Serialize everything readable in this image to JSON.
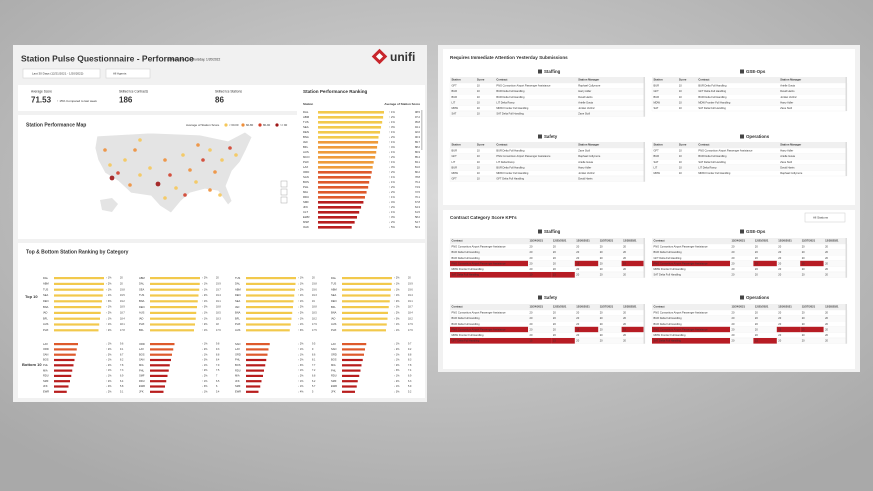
{
  "header": {
    "title": "Station Pulse Questionnaire - Performance",
    "subtitle": "as Refreshed on Thursday, 1/20/2022",
    "filters": [
      "Last 30 Days (12/21/2021 - 1/20/2022)",
      "All Agents"
    ],
    "logo": "unifi"
  },
  "kpis": [
    {
      "label": "Average Score",
      "value": "71.53",
      "note": "↑ 15% Compared to last week"
    },
    {
      "label": "Skilled Ice Contracts",
      "value": "186"
    },
    {
      "label": "Skilled Ice Stations",
      "value": "86"
    }
  ],
  "map": {
    "title": "Station Performance Map",
    "legend_title": "Average of Station Score",
    "legend": [
      {
        "label": "< 60.00",
        "color": "#f5c75a"
      },
      {
        "label": "60-80",
        "color": "#ee8f3a"
      },
      {
        "label": "80-90",
        "color": "#d2402c"
      },
      {
        "label": ">= 90",
        "color": "#9e1616"
      }
    ]
  },
  "ranking": {
    "title": "Station Performance Ranking",
    "columns": [
      "Station",
      "Average of Station Score"
    ],
    "xlim": [
      0,
      100
    ],
    "colors": [
      "#f2c94c",
      "#ee9b3a",
      "#de5a2c",
      "#b81d1d"
    ],
    "stations": [
      "DAL",
      "ABM",
      "TUS",
      "SEA",
      "DEN",
      "BNA",
      "IAD",
      "BFL",
      "AUS",
      "MCO",
      "PHX",
      "LAX",
      "ORD",
      "SAN",
      "BOS",
      "PHL",
      "MIA",
      "RDU",
      "SMF",
      "JFK",
      "CLT",
      "EWR",
      "MSP",
      "OAK"
    ],
    "changes": [
      "↑ 1%",
      "↑ 2%",
      "↓ 1%",
      "↑ 3%",
      "↑ 1%",
      "↓ 2%",
      "↑ 1%",
      "↑ 4%",
      "↓ 1%",
      "↑ 2%",
      "↑ 1%",
      "↓ 3%",
      "↑ 2%",
      "↑ 1%",
      "↓ 1%",
      "↑ 2%",
      "↓ 2%",
      "↑ 1%",
      "↓ 4%",
      "↑ 2%",
      "↓ 1%",
      "↑ 3%",
      "↓ 2%",
      "↓ 5%"
    ],
    "values": [
      98.5,
      97.2,
      95.8,
      94.1,
      92.6,
      90.3,
      89.7,
      88.2,
      86.9,
      85.4,
      83.1,
      81.6,
      80.2,
      78.8,
      76.4,
      74.9,
      72.5,
      70.1,
      67.8,
      64.3,
      61.5,
      58.2,
      54.7,
      50.3
    ]
  },
  "top_bottom": {
    "title": "Top & Bottom Station Ranking by Category",
    "top_label": "Top 10",
    "bottom_label": "Bottom 10",
    "xlim": [
      0,
      20
    ],
    "panels": [
      {
        "top": {
          "stations": [
            "DAL",
            "ABM",
            "TUS",
            "SEA",
            "DEN",
            "BNA",
            "IAD",
            "BFL",
            "AUS",
            "PHX"
          ],
          "changes": [
            "↑ 1%",
            "↑ 2%",
            "↑ 1%",
            "↓ 1%",
            "↑ 3%",
            "↑ 1%",
            "↑ 2%",
            "↓ 1%",
            "↑ 1%",
            "↑ 2%"
          ],
          "values": [
            20,
            20,
            19.8,
            19.5,
            19.2,
            18.9,
            18.7,
            18.4,
            18.1,
            17.8
          ]
        },
        "bottom": {
          "stations": [
            "LAX",
            "ORD",
            "SAN",
            "BOS",
            "PHL",
            "MIA",
            "RDU",
            "SMF",
            "JFK",
            "EWR"
          ],
          "changes": [
            "↓ 1%",
            "↑ 2%",
            "↓ 3%",
            "↑ 1%",
            "↓ 2%",
            "↑ 1%",
            "↓ 1%",
            "↑ 2%",
            "↓ 4%",
            "↓ 2%"
          ],
          "values": [
            9.6,
            9.1,
            8.7,
            8.2,
            7.8,
            7.3,
            6.9,
            6.4,
            5.8,
            5.1
          ]
        }
      },
      {
        "top": {
          "stations": [
            "ABM",
            "DAL",
            "SEA",
            "TUS",
            "BNA",
            "DEN",
            "AUS",
            "IAD",
            "PHX",
            "BFL"
          ],
          "changes": [
            "↑ 2%",
            "↑ 1%",
            "↑ 1%",
            "↓ 2%",
            "↑ 1%",
            "↑ 3%",
            "↓ 1%",
            "↑ 1%",
            "↑ 2%",
            "↑ 1%"
          ],
          "values": [
            20,
            19.9,
            19.7,
            19.4,
            19.1,
            18.8,
            18.5,
            18.3,
            18,
            17.6
          ]
        },
        "bottom": {
          "stations": [
            "ORD",
            "LAX",
            "BOS",
            "SAN",
            "MIA",
            "PHL",
            "SMF",
            "RDU",
            "EWR",
            "JFK"
          ],
          "changes": [
            "↑ 1%",
            "↓ 2%",
            "↓ 1%",
            "↑ 3%",
            "↓ 1%",
            "↑ 2%",
            "↓ 2%",
            "↑ 1%",
            "↓ 3%",
            "↓ 1%"
          ],
          "values": [
            9.8,
            9.3,
            8.8,
            8.4,
            7.9,
            7.5,
            7,
            6.5,
            6,
            5.4
          ]
        }
      },
      {
        "top": {
          "stations": [
            "TUS",
            "DAL",
            "ABM",
            "DEN",
            "SEA",
            "IAD",
            "BNA",
            "BFL",
            "PHX",
            "AUS"
          ],
          "changes": [
            "↑ 1%",
            "↓ 1%",
            "↑ 2%",
            "↑ 1%",
            "↑ 1%",
            "↓ 2%",
            "↑ 2%",
            "↑ 1%",
            "↓ 1%",
            "↑ 3%"
          ],
          "values": [
            20,
            19.8,
            19.6,
            19.3,
            19,
            18.8,
            18.5,
            18.2,
            17.9,
            17.5
          ]
        },
        "bottom": {
          "stations": [
            "SAN",
            "LAX",
            "ORD",
            "PHL",
            "BOS",
            "RDU",
            "MIA",
            "JFK",
            "SMF",
            "EWR"
          ],
          "changes": [
            "↓ 2%",
            "↑ 1%",
            "↓ 1%",
            "↑ 2%",
            "↓ 3%",
            "↑ 1%",
            "↓ 2%",
            "↑ 1%",
            "↓ 1%",
            "↓ 4%"
          ],
          "values": [
            9.5,
            9,
            8.6,
            8.1,
            7.7,
            7.2,
            6.8,
            6.2,
            5.7,
            5
          ]
        }
      },
      {
        "top": {
          "stations": [
            "DAL",
            "TUS",
            "ABM",
            "SEA",
            "DEN",
            "BFL",
            "BNA",
            "IAD",
            "AUS",
            "PHX"
          ],
          "changes": [
            "↑ 2%",
            "↑ 1%",
            "↓ 1%",
            "↑ 1%",
            "↑ 2%",
            "↑ 1%",
            "↓ 2%",
            "↑ 3%",
            "↑ 1%",
            "↓ 1%"
          ],
          "values": [
            20,
            19.9,
            19.6,
            19.4,
            19.1,
            18.7,
            18.4,
            18.2,
            17.9,
            17.6
          ]
        },
        "bottom": {
          "stations": [
            "LAX",
            "SAN",
            "ORD",
            "BOS",
            "MIA",
            "PHL",
            "RDU",
            "SMF",
            "EWR",
            "JFK"
          ],
          "changes": [
            "↓ 1%",
            "↓ 2%",
            "↑ 1%",
            "↓ 1%",
            "↑ 2%",
            "↓ 3%",
            "↑ 1%",
            "↓ 2%",
            "↓ 1%",
            "↓ 3%"
          ],
          "values": [
            9.7,
            9.2,
            8.8,
            8.3,
            7.8,
            7.4,
            6.9,
            6.3,
            5.9,
            5.2
          ]
        }
      }
    ]
  },
  "attention": {
    "title": "Requires Immediate Attention Yesterday Submissions",
    "columns": [
      "Station",
      "Score",
      "Contract",
      "Station Manager"
    ],
    "sections": [
      {
        "name": "Staffing",
        "rows": [
          [
            "GFT",
            10,
            "PNG Consortium Airport Passenger Assistance",
            "Raphael Collymore"
          ],
          [
            "BUR",
            10,
            "BUR Delta Full Handling",
            "Harry Adler"
          ],
          [
            "BUR",
            10,
            "BUR Delta Full Handling",
            "David Harris"
          ],
          [
            "LIT",
            10,
            "LIT Delta Ramp",
            "Arielle Gavia"
          ],
          [
            "MDW",
            10,
            "MDW Frontier Full Handling",
            "Jordan Verlinz"
          ],
          [
            "SAT",
            10,
            "SAT Delta Full Handling",
            "Zane Stoll"
          ]
        ]
      },
      {
        "name": "GSE-Ops",
        "rows": [
          [
            "BUR",
            10,
            "BUR Delta Full Handling",
            "Arielle Gavia"
          ],
          [
            "GFT",
            10,
            "GFT Delta Full Handling",
            "David Harris"
          ],
          [
            "BUR",
            10,
            "BUR Delta Full Handling",
            "Jordan Verlinz"
          ],
          [
            "MDW",
            10,
            "MDW Frontier Full Handling",
            "Harry Adler"
          ],
          [
            "SAT",
            10,
            "SAT Delta Full Handling",
            "Zane Stoll"
          ]
        ]
      },
      {
        "name": "Safety",
        "rows": [
          [
            "BUR",
            10,
            "BUR Delta Full Handling",
            "Zane Stoll"
          ],
          [
            "GFT",
            10,
            "PNG Consortium Airport Passenger Assistance",
            "Raphael Collymore"
          ],
          [
            "LIT",
            10,
            "LIT Delta Ramp",
            "Arielle Gavia"
          ],
          [
            "BUR",
            10,
            "BUR Delta Full Handling",
            "Harry Adler"
          ],
          [
            "MDW",
            10,
            "MDW Frontier Full Handling",
            "Jordan Verlinz"
          ],
          [
            "GFT",
            10,
            "GFT Delta Full Handling",
            "David Harris"
          ]
        ]
      },
      {
        "name": "Operations",
        "rows": [
          [
            "GFT",
            10,
            "PNG Consortium Airport Passenger Assistance",
            "Harry Adler"
          ],
          [
            "BUR",
            10,
            "BUR Delta Full Handling",
            "Arielle Gavia"
          ],
          [
            "SAT",
            10,
            "SAT Delta Full Handling",
            "Zane Stoll"
          ],
          [
            "LIT",
            10,
            "LIT Delta Ramp",
            "David Harris"
          ],
          [
            "MDW",
            10,
            "MDW Frontier Full Handling",
            "Raphael Collymore"
          ]
        ]
      }
    ]
  },
  "kpi_tables": {
    "title": "Contract Category Score KPI's",
    "filter": "All Stations",
    "columns": [
      "Contract",
      "12/24/2021",
      "12/25/2021",
      "12/26/2021",
      "12/27/2021",
      "12/28/2021"
    ],
    "sections": [
      {
        "name": "Staffing",
        "rows": [
          [
            "PNG Consortium Airport Passenger Assistance",
            20,
            20,
            20,
            20,
            20
          ],
          [
            "BUR Delta Full Handling",
            20,
            20,
            20,
            20,
            20
          ],
          [
            "BUR Delta Full Handling",
            20,
            20,
            20,
            20,
            20
          ],
          [
            "PNG Consortium Airport Passenger Assistance",
            20,
            20,
            15,
            20,
            15
          ],
          [
            "MDW Frontier Full Handling",
            20,
            20,
            20,
            20,
            20
          ],
          [
            "SAT Delta Full Handling",
            10,
            15,
            20,
            20,
            20
          ]
        ]
      },
      {
        "name": "GSE-Ops",
        "rows": [
          [
            "PNG Consortium Airport Passenger Assistance",
            20,
            20,
            20,
            20,
            20
          ],
          [
            "BUR Delta Full Handling",
            20,
            20,
            20,
            20,
            20
          ],
          [
            "GFT Delta Full Handling",
            20,
            20,
            20,
            20,
            20
          ],
          [
            "PNG Consortium Airport Passenger Assistance",
            20,
            15,
            20,
            15,
            20
          ],
          [
            "MDW Frontier Full Handling",
            20,
            20,
            20,
            20,
            20
          ],
          [
            "SAT Delta Full Handling",
            20,
            20,
            20,
            20,
            20
          ]
        ]
      },
      {
        "name": "Safety",
        "rows": [
          [
            "PNG Consortium Airport Passenger Assistance",
            20,
            20,
            20,
            20,
            20
          ],
          [
            "BUR Delta Full Handling",
            20,
            20,
            20,
            20,
            20
          ],
          [
            "BUR Delta Full Handling",
            20,
            20,
            20,
            20,
            20
          ],
          [
            "PNG Consortium Airport Passenger Assistance",
            20,
            20,
            15,
            20,
            15
          ],
          [
            "MDW Frontier Full Handling",
            20,
            20,
            20,
            20,
            20
          ],
          [
            "GFT Delta Full Handling",
            15,
            15,
            20,
            20,
            20
          ]
        ]
      },
      {
        "name": "Operations",
        "rows": [
          [
            "PNG Consortium Airport Passenger Assistance",
            20,
            20,
            20,
            20,
            20
          ],
          [
            "BUR Delta Full Handling",
            20,
            20,
            20,
            20,
            20
          ],
          [
            "BUR Delta Full Handling",
            20,
            20,
            20,
            20,
            20
          ],
          [
            "PNG Consortium Airport Passenger Assistance",
            20,
            20,
            15,
            15,
            20
          ],
          [
            "MDW Frontier Full Handling",
            20,
            20,
            20,
            20,
            20
          ],
          [
            "SAT Delta Full Handling",
            20,
            15,
            20,
            20,
            20
          ]
        ]
      }
    ]
  }
}
